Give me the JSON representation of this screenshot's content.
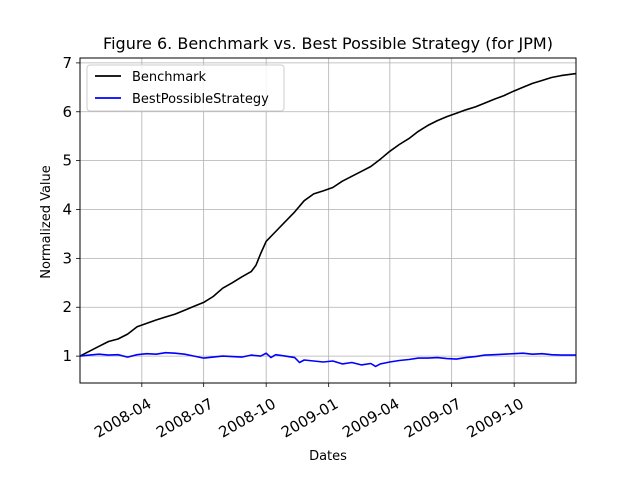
{
  "chart_data": {
    "type": "line",
    "title": "Figure 6. Benchmark vs. Best Possible Strategy (for JPM)",
    "xlabel": "Dates",
    "ylabel": "Normalized Value",
    "xlim": [
      "2008-01-01",
      "2009-12-31"
    ],
    "ylim": [
      0.45,
      7.1
    ],
    "grid": true,
    "legend_position": "upper-left",
    "x_ticks": [
      "2008-04",
      "2008-07",
      "2008-10",
      "2009-01",
      "2009-04",
      "2009-07",
      "2009-10"
    ],
    "y_ticks": [
      1,
      2,
      3,
      4,
      5,
      6,
      7
    ],
    "series": [
      {
        "name": "Benchmark",
        "color": "#000000",
        "points": [
          [
            "2008-01-01",
            1.0
          ],
          [
            "2008-01-15",
            1.1
          ],
          [
            "2008-01-29",
            1.2
          ],
          [
            "2008-02-12",
            1.3
          ],
          [
            "2008-02-26",
            1.35
          ],
          [
            "2008-03-11",
            1.45
          ],
          [
            "2008-03-25",
            1.6
          ],
          [
            "2008-04-08",
            1.67
          ],
          [
            "2008-04-22",
            1.74
          ],
          [
            "2008-05-06",
            1.8
          ],
          [
            "2008-05-20",
            1.86
          ],
          [
            "2008-06-03",
            1.94
          ],
          [
            "2008-06-17",
            2.02
          ],
          [
            "2008-07-01",
            2.1
          ],
          [
            "2008-07-15",
            2.22
          ],
          [
            "2008-07-29",
            2.39
          ],
          [
            "2008-08-12",
            2.5
          ],
          [
            "2008-08-26",
            2.62
          ],
          [
            "2008-09-09",
            2.73
          ],
          [
            "2008-09-16",
            2.86
          ],
          [
            "2008-09-23",
            3.1
          ],
          [
            "2008-10-01",
            3.35
          ],
          [
            "2008-10-15",
            3.55
          ],
          [
            "2008-10-29",
            3.75
          ],
          [
            "2008-11-12",
            3.95
          ],
          [
            "2008-11-26",
            4.18
          ],
          [
            "2008-12-10",
            4.32
          ],
          [
            "2008-12-24",
            4.38
          ],
          [
            "2009-01-07",
            4.45
          ],
          [
            "2009-01-21",
            4.58
          ],
          [
            "2009-02-04",
            4.68
          ],
          [
            "2009-02-18",
            4.78
          ],
          [
            "2009-03-04",
            4.88
          ],
          [
            "2009-03-18",
            5.03
          ],
          [
            "2009-04-01",
            5.19
          ],
          [
            "2009-04-15",
            5.33
          ],
          [
            "2009-04-29",
            5.45
          ],
          [
            "2009-05-13",
            5.6
          ],
          [
            "2009-05-27",
            5.72
          ],
          [
            "2009-06-10",
            5.82
          ],
          [
            "2009-06-24",
            5.9
          ],
          [
            "2009-07-08",
            5.97
          ],
          [
            "2009-07-22",
            6.04
          ],
          [
            "2009-08-05",
            6.1
          ],
          [
            "2009-08-19",
            6.18
          ],
          [
            "2009-09-02",
            6.26
          ],
          [
            "2009-09-16",
            6.33
          ],
          [
            "2009-09-30",
            6.42
          ],
          [
            "2009-10-14",
            6.5
          ],
          [
            "2009-10-28",
            6.58
          ],
          [
            "2009-11-11",
            6.64
          ],
          [
            "2009-11-25",
            6.7
          ],
          [
            "2009-12-09",
            6.74
          ],
          [
            "2009-12-31",
            6.78
          ]
        ]
      },
      {
        "name": "BestPossibleStrategy",
        "color": "#0000ff",
        "points": [
          [
            "2008-01-01",
            1.0
          ],
          [
            "2008-01-15",
            1.02
          ],
          [
            "2008-01-29",
            1.04
          ],
          [
            "2008-02-12",
            1.02
          ],
          [
            "2008-02-26",
            1.03
          ],
          [
            "2008-03-11",
            0.98
          ],
          [
            "2008-03-25",
            1.03
          ],
          [
            "2008-04-08",
            1.05
          ],
          [
            "2008-04-22",
            1.04
          ],
          [
            "2008-05-06",
            1.07
          ],
          [
            "2008-05-20",
            1.06
          ],
          [
            "2008-06-03",
            1.04
          ],
          [
            "2008-06-17",
            1.0
          ],
          [
            "2008-07-01",
            0.96
          ],
          [
            "2008-07-15",
            0.98
          ],
          [
            "2008-07-29",
            1.0
          ],
          [
            "2008-08-12",
            0.99
          ],
          [
            "2008-08-26",
            0.98
          ],
          [
            "2008-09-09",
            1.02
          ],
          [
            "2008-09-23",
            1.0
          ],
          [
            "2008-10-01",
            1.06
          ],
          [
            "2008-10-08",
            0.97
          ],
          [
            "2008-10-15",
            1.03
          ],
          [
            "2008-10-29",
            1.0
          ],
          [
            "2008-11-12",
            0.97
          ],
          [
            "2008-11-19",
            0.87
          ],
          [
            "2008-11-26",
            0.92
          ],
          [
            "2008-12-10",
            0.9
          ],
          [
            "2008-12-24",
            0.88
          ],
          [
            "2009-01-07",
            0.9
          ],
          [
            "2009-01-21",
            0.84
          ],
          [
            "2009-02-04",
            0.87
          ],
          [
            "2009-02-18",
            0.82
          ],
          [
            "2009-03-04",
            0.85
          ],
          [
            "2009-03-11",
            0.79
          ],
          [
            "2009-03-18",
            0.84
          ],
          [
            "2009-04-01",
            0.88
          ],
          [
            "2009-04-15",
            0.91
          ],
          [
            "2009-04-29",
            0.93
          ],
          [
            "2009-05-13",
            0.96
          ],
          [
            "2009-05-27",
            0.96
          ],
          [
            "2009-06-10",
            0.97
          ],
          [
            "2009-06-24",
            0.95
          ],
          [
            "2009-07-08",
            0.94
          ],
          [
            "2009-07-22",
            0.97
          ],
          [
            "2009-08-05",
            0.99
          ],
          [
            "2009-08-19",
            1.02
          ],
          [
            "2009-09-02",
            1.03
          ],
          [
            "2009-09-16",
            1.04
          ],
          [
            "2009-09-30",
            1.05
          ],
          [
            "2009-10-14",
            1.06
          ],
          [
            "2009-10-28",
            1.04
          ],
          [
            "2009-11-11",
            1.05
          ],
          [
            "2009-11-25",
            1.03
          ],
          [
            "2009-12-09",
            1.02
          ],
          [
            "2009-12-31",
            1.02
          ]
        ]
      }
    ]
  }
}
